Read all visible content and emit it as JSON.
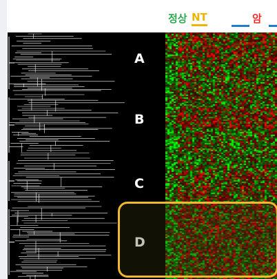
{
  "legend": {
    "normal_label": "정상",
    "nt_label": "NT",
    "cancer_label": "암"
  },
  "clusters": [
    "A",
    "B",
    "C",
    "D"
  ],
  "highlighted_cluster": "D",
  "colors": {
    "normal": "#2fa84f",
    "nt": "#f0b400",
    "cancer": "#ee2b2b",
    "bracket": "#1f7ac8",
    "highlight_border": "#f2b82e",
    "up": "#e8232a",
    "down": "#22c83a"
  }
}
